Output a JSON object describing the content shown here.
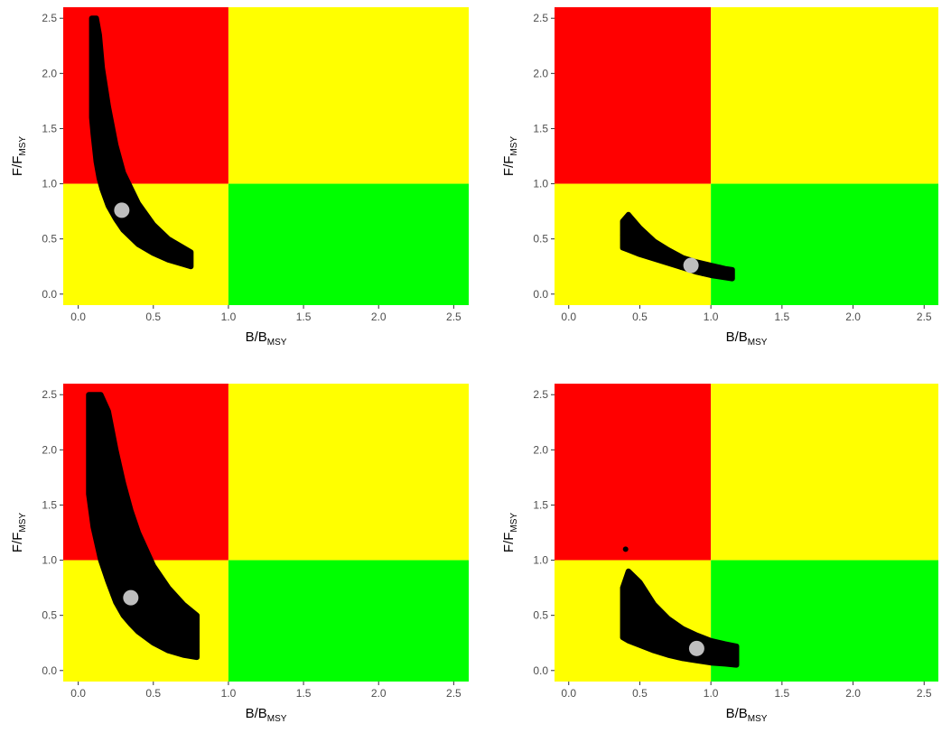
{
  "chart_data": [
    {
      "type": "scatter",
      "panel": "top-left",
      "xlabel": {
        "main": "B/B",
        "sub": "MSY"
      },
      "ylabel": {
        "main": "F/F",
        "sub": "MSY"
      },
      "xlim": [
        -0.1,
        2.6
      ],
      "ylim": [
        -0.1,
        2.6
      ],
      "xticks": [
        "0.0",
        "0.5",
        "1.0",
        "1.5",
        "2.0",
        "2.5"
      ],
      "yticks": [
        "0.0",
        "0.5",
        "1.0",
        "1.5",
        "2.0",
        "2.5"
      ],
      "zones": [
        {
          "x": [
            -0.1,
            1.0
          ],
          "y": [
            1.0,
            2.6
          ],
          "color": "#ff0000"
        },
        {
          "x": [
            1.0,
            2.6
          ],
          "y": [
            1.0,
            2.6
          ],
          "color": "#ffff00"
        },
        {
          "x": [
            -0.1,
            1.0
          ],
          "y": [
            -0.1,
            1.0
          ],
          "color": "#ffff00"
        },
        {
          "x": [
            1.0,
            2.6
          ],
          "y": [
            -0.1,
            1.0
          ],
          "color": "#00ff00"
        }
      ],
      "cloud": {
        "color": "#000000",
        "band": [
          {
            "x": 0.09,
            "ylow": 1.6,
            "yhigh": 2.5
          },
          {
            "x": 0.1,
            "ylow": 1.45,
            "yhigh": 2.5
          },
          {
            "x": 0.12,
            "ylow": 1.2,
            "yhigh": 2.5
          },
          {
            "x": 0.14,
            "ylow": 1.05,
            "yhigh": 2.35
          },
          {
            "x": 0.16,
            "ylow": 0.95,
            "yhigh": 2.05
          },
          {
            "x": 0.2,
            "ylow": 0.8,
            "yhigh": 1.7
          },
          {
            "x": 0.25,
            "ylow": 0.68,
            "yhigh": 1.35
          },
          {
            "x": 0.3,
            "ylow": 0.58,
            "yhigh": 1.1
          },
          {
            "x": 0.4,
            "ylow": 0.45,
            "yhigh": 0.82
          },
          {
            "x": 0.5,
            "ylow": 0.37,
            "yhigh": 0.63
          },
          {
            "x": 0.6,
            "ylow": 0.31,
            "yhigh": 0.5
          },
          {
            "x": 0.7,
            "ylow": 0.27,
            "yhigh": 0.42
          },
          {
            "x": 0.75,
            "ylow": 0.25,
            "yhigh": 0.38
          }
        ]
      },
      "point_estimate": {
        "x": 0.29,
        "y": 0.76,
        "color": "#bebebe"
      }
    },
    {
      "type": "scatter",
      "panel": "top-right",
      "xlabel": {
        "main": "B/B",
        "sub": "MSY"
      },
      "ylabel": {
        "main": "F/F",
        "sub": "MSY"
      },
      "xlim": [
        -0.1,
        2.6
      ],
      "ylim": [
        -0.1,
        2.6
      ],
      "xticks": [
        "0.0",
        "0.5",
        "1.0",
        "1.5",
        "2.0",
        "2.5"
      ],
      "yticks": [
        "0.0",
        "0.5",
        "1.0",
        "1.5",
        "2.0",
        "2.5"
      ],
      "zones": [
        {
          "x": [
            -0.1,
            1.0
          ],
          "y": [
            1.0,
            2.6
          ],
          "color": "#ff0000"
        },
        {
          "x": [
            1.0,
            2.6
          ],
          "y": [
            1.0,
            2.6
          ],
          "color": "#ffff00"
        },
        {
          "x": [
            -0.1,
            1.0
          ],
          "y": [
            -0.1,
            1.0
          ],
          "color": "#ffff00"
        },
        {
          "x": [
            1.0,
            2.6
          ],
          "y": [
            -0.1,
            1.0
          ],
          "color": "#00ff00"
        }
      ],
      "cloud": {
        "color": "#000000",
        "band": [
          {
            "x": 0.38,
            "ylow": 0.42,
            "yhigh": 0.66
          },
          {
            "x": 0.42,
            "ylow": 0.4,
            "yhigh": 0.72
          },
          {
            "x": 0.5,
            "ylow": 0.36,
            "yhigh": 0.6
          },
          {
            "x": 0.6,
            "ylow": 0.32,
            "yhigh": 0.48
          },
          {
            "x": 0.7,
            "ylow": 0.28,
            "yhigh": 0.4
          },
          {
            "x": 0.8,
            "ylow": 0.24,
            "yhigh": 0.33
          },
          {
            "x": 0.9,
            "ylow": 0.2,
            "yhigh": 0.29
          },
          {
            "x": 1.0,
            "ylow": 0.17,
            "yhigh": 0.26
          },
          {
            "x": 1.1,
            "ylow": 0.15,
            "yhigh": 0.23
          },
          {
            "x": 1.15,
            "ylow": 0.14,
            "yhigh": 0.22
          }
        ]
      },
      "point_estimate": {
        "x": 0.86,
        "y": 0.26,
        "color": "#bebebe"
      }
    },
    {
      "type": "scatter",
      "panel": "bottom-left",
      "xlabel": {
        "main": "B/B",
        "sub": "MSY"
      },
      "ylabel": {
        "main": "F/F",
        "sub": "MSY"
      },
      "xlim": [
        -0.1,
        2.6
      ],
      "ylim": [
        -0.1,
        2.6
      ],
      "xticks": [
        "0.0",
        "0.5",
        "1.0",
        "1.5",
        "2.0",
        "2.5"
      ],
      "yticks": [
        "0.0",
        "0.5",
        "1.0",
        "1.5",
        "2.0",
        "2.5"
      ],
      "zones": [
        {
          "x": [
            -0.1,
            1.0
          ],
          "y": [
            1.0,
            2.6
          ],
          "color": "#ff0000"
        },
        {
          "x": [
            1.0,
            2.6
          ],
          "y": [
            1.0,
            2.6
          ],
          "color": "#ffff00"
        },
        {
          "x": [
            -0.1,
            1.0
          ],
          "y": [
            -0.1,
            1.0
          ],
          "color": "#ffff00"
        },
        {
          "x": [
            1.0,
            2.6
          ],
          "y": [
            -0.1,
            1.0
          ],
          "color": "#00ff00"
        }
      ],
      "cloud": {
        "color": "#000000",
        "band": [
          {
            "x": 0.07,
            "ylow": 1.6,
            "yhigh": 2.5
          },
          {
            "x": 0.1,
            "ylow": 1.3,
            "yhigh": 2.5
          },
          {
            "x": 0.15,
            "ylow": 1.0,
            "yhigh": 2.5
          },
          {
            "x": 0.2,
            "ylow": 0.8,
            "yhigh": 2.35
          },
          {
            "x": 0.25,
            "ylow": 0.62,
            "yhigh": 2.0
          },
          {
            "x": 0.3,
            "ylow": 0.5,
            "yhigh": 1.7
          },
          {
            "x": 0.35,
            "ylow": 0.42,
            "yhigh": 1.45
          },
          {
            "x": 0.4,
            "ylow": 0.35,
            "yhigh": 1.25
          },
          {
            "x": 0.5,
            "ylow": 0.25,
            "yhigh": 0.95
          },
          {
            "x": 0.6,
            "ylow": 0.18,
            "yhigh": 0.75
          },
          {
            "x": 0.7,
            "ylow": 0.14,
            "yhigh": 0.6
          },
          {
            "x": 0.79,
            "ylow": 0.12,
            "yhigh": 0.5
          }
        ]
      },
      "point_estimate": {
        "x": 0.35,
        "y": 0.66,
        "color": "#bebebe"
      }
    },
    {
      "type": "scatter",
      "panel": "bottom-right",
      "xlabel": {
        "main": "B/B",
        "sub": "MSY"
      },
      "ylabel": {
        "main": "F/F",
        "sub": "MSY"
      },
      "xlim": [
        -0.1,
        2.6
      ],
      "ylim": [
        -0.1,
        2.6
      ],
      "xticks": [
        "0.0",
        "0.5",
        "1.0",
        "1.5",
        "2.0",
        "2.5"
      ],
      "yticks": [
        "0.0",
        "0.5",
        "1.0",
        "1.5",
        "2.0",
        "2.5"
      ],
      "zones": [
        {
          "x": [
            -0.1,
            1.0
          ],
          "y": [
            1.0,
            2.6
          ],
          "color": "#ff0000"
        },
        {
          "x": [
            1.0,
            2.6
          ],
          "y": [
            1.0,
            2.6
          ],
          "color": "#ffff00"
        },
        {
          "x": [
            -0.1,
            1.0
          ],
          "y": [
            -0.1,
            1.0
          ],
          "color": "#ffff00"
        },
        {
          "x": [
            1.0,
            2.6
          ],
          "y": [
            -0.1,
            1.0
          ],
          "color": "#00ff00"
        }
      ],
      "cloud": {
        "color": "#000000",
        "band": [
          {
            "x": 0.38,
            "ylow": 0.3,
            "yhigh": 0.75
          },
          {
            "x": 0.42,
            "ylow": 0.27,
            "yhigh": 0.9
          },
          {
            "x": 0.5,
            "ylow": 0.23,
            "yhigh": 0.8
          },
          {
            "x": 0.6,
            "ylow": 0.18,
            "yhigh": 0.6
          },
          {
            "x": 0.7,
            "ylow": 0.14,
            "yhigh": 0.47
          },
          {
            "x": 0.8,
            "ylow": 0.11,
            "yhigh": 0.38
          },
          {
            "x": 0.9,
            "ylow": 0.09,
            "yhigh": 0.32
          },
          {
            "x": 1.0,
            "ylow": 0.07,
            "yhigh": 0.27
          },
          {
            "x": 1.1,
            "ylow": 0.06,
            "yhigh": 0.24
          },
          {
            "x": 1.18,
            "ylow": 0.05,
            "yhigh": 0.22
          }
        ],
        "outliers": [
          {
            "x": 0.4,
            "y": 1.1
          }
        ]
      },
      "point_estimate": {
        "x": 0.9,
        "y": 0.2,
        "color": "#bebebe"
      }
    }
  ]
}
